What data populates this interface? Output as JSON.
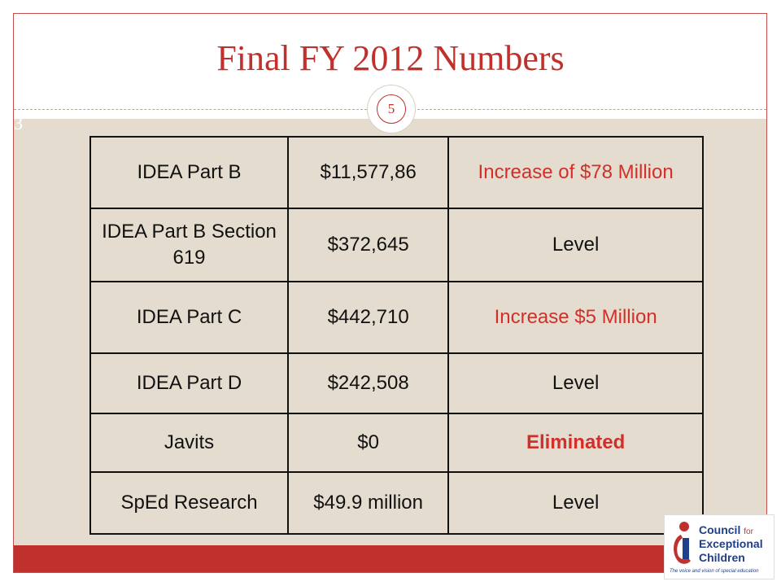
{
  "slide": {
    "title": "Final FY 2012 Numbers",
    "page_number": "5",
    "edge_mark": "3"
  },
  "table": {
    "rows": [
      {
        "program": "IDEA Part B",
        "amount": "$11,577,86",
        "change": "Increase of $78 Million",
        "change_color": "#d32f2a",
        "change_bold": false
      },
      {
        "program": "IDEA Part B Section 619",
        "amount": "$372,645",
        "change": "Level",
        "change_color": "#111111",
        "change_bold": false
      },
      {
        "program": "IDEA Part C",
        "amount": "$442,710",
        "change": "Increase $5 Million",
        "change_color": "#d32f2a",
        "change_bold": false
      },
      {
        "program": "IDEA Part D",
        "amount": "$242,508",
        "change": "Level",
        "change_color": "#111111",
        "change_bold": false
      },
      {
        "program": "Javits",
        "amount": "$0",
        "change": "Eliminated",
        "change_color": "#d32f2a",
        "change_bold": true
      },
      {
        "program": "SpEd Research",
        "amount": "$49.9 million",
        "change": "Level",
        "change_color": "#111111",
        "change_bold": false
      }
    ]
  },
  "logo": {
    "line1": "Council",
    "line1_small": "for",
    "line2": "Exceptional",
    "line3": "Children",
    "tagline": "The voice and vision of special education"
  },
  "colors": {
    "accent": "#c0312d",
    "content_background": "#e4ddcf",
    "logo_blue": "#1f3f8a"
  }
}
